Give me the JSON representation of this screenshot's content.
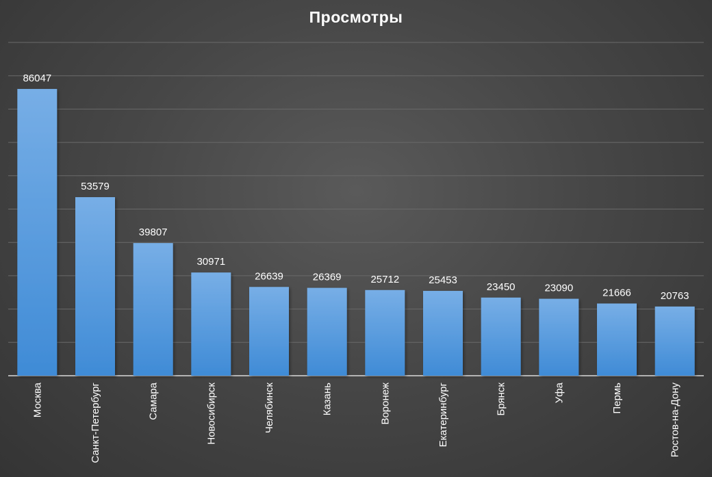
{
  "chart_data": {
    "type": "bar",
    "title": "Просмотры",
    "categories": [
      "Москва",
      "Санкт-Петербург",
      "Самара",
      "Новосибирск",
      "Челябинск",
      "Казань",
      "Воронеж",
      "Екатеринбург",
      "Брянск",
      "Уфа",
      "Пермь",
      "Ростов-на-Дону"
    ],
    "values": [
      86047,
      53579,
      39807,
      30971,
      26639,
      26369,
      25712,
      25453,
      23450,
      23090,
      21666,
      20763
    ],
    "ylim": [
      0,
      100000
    ],
    "grid": true,
    "data_labels": true,
    "colors": {
      "bar_top": "#77aee6",
      "bar_bottom": "#3f8bd6",
      "background": "#474747",
      "grid": "#6a6a6a",
      "text": "#ffffff"
    }
  }
}
